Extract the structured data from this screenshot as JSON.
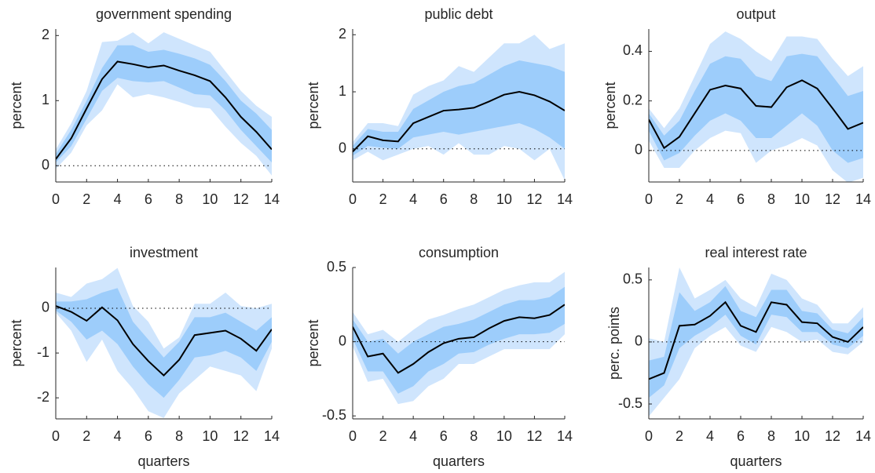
{
  "chart_data": [
    {
      "type": "line",
      "title": "government spending",
      "ylabel": "percent",
      "x": [
        0,
        1,
        2,
        3,
        4,
        5,
        6,
        7,
        8,
        9,
        10,
        11,
        12,
        13,
        14
      ],
      "xlim": [
        0,
        14
      ],
      "xticks": [
        0,
        2,
        4,
        6,
        8,
        10,
        12,
        14
      ],
      "ylim": [
        -0.25,
        2.1
      ],
      "yticks": [
        0,
        1,
        2
      ],
      "zero_line": true,
      "bands": [
        {
          "color": "#cfe5fd",
          "lower": [
            -0.05,
            0.2,
            0.62,
            0.85,
            1.25,
            1.05,
            1.1,
            1.05,
            0.98,
            0.9,
            0.88,
            0.6,
            0.35,
            0.15,
            -0.15
          ],
          "upper": [
            0.25,
            0.65,
            1.15,
            1.9,
            1.92,
            2.05,
            1.88,
            2.05,
            1.95,
            1.85,
            1.75,
            1.45,
            1.15,
            0.92,
            0.75
          ]
        },
        {
          "color": "#9dcdfb",
          "lower": [
            0.05,
            0.3,
            0.72,
            1.15,
            1.35,
            1.3,
            1.28,
            1.3,
            1.2,
            1.1,
            1.08,
            0.85,
            0.55,
            0.3,
            0.05
          ],
          "upper": [
            0.18,
            0.55,
            1.0,
            1.5,
            1.85,
            1.85,
            1.75,
            1.78,
            1.72,
            1.65,
            1.55,
            1.3,
            1.0,
            0.8,
            0.55
          ]
        }
      ],
      "series": [
        {
          "color": "#000000",
          "values": [
            0.1,
            0.42,
            0.88,
            1.33,
            1.6,
            1.56,
            1.51,
            1.54,
            1.46,
            1.39,
            1.3,
            1.05,
            0.75,
            0.52,
            0.25
          ]
        }
      ]
    },
    {
      "type": "line",
      "title": "public debt",
      "ylabel": "percent",
      "x": [
        0,
        1,
        2,
        3,
        4,
        5,
        6,
        7,
        8,
        9,
        10,
        11,
        12,
        13,
        14
      ],
      "xlim": [
        0,
        14
      ],
      "xticks": [
        0,
        2,
        4,
        6,
        8,
        10,
        12,
        14
      ],
      "ylim": [
        -0.58,
        2.1
      ],
      "yticks": [
        0,
        1,
        2
      ],
      "zero_line": true,
      "bands": [
        {
          "color": "#cfe5fd",
          "lower": [
            -0.2,
            -0.05,
            -0.2,
            -0.1,
            0.0,
            0.05,
            -0.1,
            0.1,
            -0.1,
            -0.1,
            0.05,
            0.0,
            -0.2,
            0.0,
            -0.55
          ],
          "upper": [
            0.12,
            0.45,
            0.45,
            0.4,
            0.95,
            1.1,
            1.2,
            1.45,
            1.35,
            1.6,
            1.85,
            1.85,
            2.0,
            1.75,
            1.85
          ]
        },
        {
          "color": "#9dcdfb",
          "lower": [
            -0.12,
            0.05,
            0.02,
            0.0,
            0.2,
            0.25,
            0.3,
            0.25,
            0.3,
            0.35,
            0.4,
            0.45,
            0.35,
            0.2,
            0.0
          ],
          "upper": [
            0.05,
            0.35,
            0.3,
            0.3,
            0.7,
            0.85,
            1.0,
            1.1,
            1.15,
            1.3,
            1.45,
            1.55,
            1.5,
            1.45,
            1.35
          ]
        }
      ],
      "series": [
        {
          "color": "#000000",
          "values": [
            -0.05,
            0.22,
            0.15,
            0.13,
            0.45,
            0.56,
            0.67,
            0.69,
            0.72,
            0.83,
            0.95,
            1.0,
            0.94,
            0.83,
            0.67
          ]
        }
      ]
    },
    {
      "type": "line",
      "title": "output",
      "ylabel": "percent",
      "x": [
        0,
        1,
        2,
        3,
        4,
        5,
        6,
        7,
        8,
        9,
        10,
        11,
        12,
        13,
        14
      ],
      "xlim": [
        0,
        14
      ],
      "xticks": [
        0,
        2,
        4,
        6,
        8,
        10,
        12,
        14
      ],
      "ylim": [
        -0.127,
        0.49
      ],
      "yticks": [
        0,
        0.2,
        0.4
      ],
      "zero_line": true,
      "bands": [
        {
          "color": "#cfe5fd",
          "lower": [
            0.04,
            -0.07,
            -0.07,
            0.0,
            0.05,
            0.08,
            0.07,
            -0.05,
            0.0,
            0.02,
            0.05,
            0.02,
            -0.08,
            -0.13,
            -0.11
          ],
          "upper": [
            0.17,
            0.09,
            0.17,
            0.3,
            0.43,
            0.48,
            0.45,
            0.4,
            0.36,
            0.46,
            0.46,
            0.45,
            0.37,
            0.3,
            0.34
          ]
        },
        {
          "color": "#9dcdfb",
          "lower": [
            0.08,
            -0.04,
            -0.01,
            0.06,
            0.12,
            0.15,
            0.12,
            0.05,
            0.05,
            0.1,
            0.15,
            0.1,
            0.0,
            -0.05,
            -0.03
          ],
          "upper": [
            0.15,
            0.06,
            0.12,
            0.24,
            0.35,
            0.38,
            0.37,
            0.3,
            0.28,
            0.38,
            0.39,
            0.38,
            0.3,
            0.22,
            0.24
          ]
        }
      ],
      "series": [
        {
          "color": "#000000",
          "values": [
            0.125,
            0.01,
            0.055,
            0.15,
            0.245,
            0.262,
            0.25,
            0.18,
            0.175,
            0.255,
            0.283,
            0.25,
            0.17,
            0.087,
            0.112
          ]
        }
      ]
    },
    {
      "type": "line",
      "title": "investment",
      "ylabel": "percent",
      "xlabel": "quarters",
      "x": [
        0,
        1,
        2,
        3,
        4,
        5,
        6,
        7,
        8,
        9,
        10,
        11,
        12,
        13,
        14
      ],
      "xlim": [
        0,
        14
      ],
      "xticks": [
        0,
        2,
        4,
        6,
        8,
        10,
        12,
        14
      ],
      "ylim": [
        -2.47,
        0.91
      ],
      "yticks": [
        -2,
        -1,
        0
      ],
      "zero_line": true,
      "bands": [
        {
          "color": "#cfe5fd",
          "lower": [
            -0.1,
            -0.5,
            -1.2,
            -0.7,
            -1.4,
            -1.8,
            -2.3,
            -2.45,
            -1.9,
            -1.6,
            -1.3,
            -1.4,
            -1.5,
            -1.85,
            -0.9
          ],
          "upper": [
            0.35,
            0.25,
            0.55,
            0.65,
            0.9,
            0.05,
            -0.3,
            -0.9,
            -0.65,
            0.1,
            0.1,
            0.35,
            0.05,
            0.0,
            0.1
          ]
        },
        {
          "color": "#9dcdfb",
          "lower": [
            -0.05,
            -0.3,
            -0.7,
            -0.5,
            -0.8,
            -1.3,
            -1.7,
            -2.0,
            -1.6,
            -1.1,
            -1.05,
            -0.95,
            -1.1,
            -1.4,
            -0.75
          ],
          "upper": [
            0.15,
            0.15,
            0.2,
            0.35,
            0.45,
            -0.3,
            -0.7,
            -1.1,
            -0.75,
            -0.2,
            -0.2,
            -0.1,
            -0.3,
            -0.5,
            -0.2
          ]
        }
      ],
      "series": [
        {
          "color": "#000000",
          "values": [
            0.05,
            -0.08,
            -0.28,
            0.02,
            -0.27,
            -0.8,
            -1.18,
            -1.5,
            -1.15,
            -0.6,
            -0.55,
            -0.5,
            -0.68,
            -0.95,
            -0.47
          ]
        }
      ]
    },
    {
      "type": "line",
      "title": "consumption",
      "ylabel": "percent",
      "xlabel": "quarters",
      "x": [
        0,
        1,
        2,
        3,
        4,
        5,
        6,
        7,
        8,
        9,
        10,
        11,
        12,
        13,
        14
      ],
      "xlim": [
        0,
        14
      ],
      "xticks": [
        0,
        2,
        4,
        6,
        8,
        10,
        12,
        14
      ],
      "ylim": [
        -0.52,
        0.5
      ],
      "yticks": [
        -0.5,
        0,
        0.5
      ],
      "zero_line": true,
      "bands": [
        {
          "color": "#cfe5fd",
          "lower": [
            -0.03,
            -0.27,
            -0.25,
            -0.42,
            -0.4,
            -0.3,
            -0.25,
            -0.15,
            -0.15,
            -0.1,
            -0.05,
            -0.05,
            -0.05,
            -0.05,
            0.05
          ],
          "upper": [
            0.2,
            0.05,
            0.08,
            0.0,
            0.08,
            0.15,
            0.18,
            0.22,
            0.25,
            0.3,
            0.35,
            0.38,
            0.4,
            0.4,
            0.47
          ]
        },
        {
          "color": "#9dcdfb",
          "lower": [
            0.02,
            -0.2,
            -0.2,
            -0.35,
            -0.3,
            -0.2,
            -0.15,
            -0.08,
            -0.07,
            -0.02,
            0.02,
            0.05,
            0.05,
            0.06,
            0.12
          ],
          "upper": [
            0.15,
            0.0,
            0.02,
            -0.08,
            0.0,
            0.05,
            0.1,
            0.12,
            0.15,
            0.2,
            0.25,
            0.28,
            0.28,
            0.3,
            0.37
          ]
        }
      ],
      "series": [
        {
          "color": "#000000",
          "values": [
            0.1,
            -0.1,
            -0.08,
            -0.21,
            -0.15,
            -0.07,
            -0.01,
            0.02,
            0.03,
            0.09,
            0.14,
            0.165,
            0.158,
            0.18,
            0.25
          ]
        }
      ]
    },
    {
      "type": "line",
      "title": "real interest rate",
      "ylabel": "perc. points",
      "xlabel": "quarters",
      "x": [
        0,
        1,
        2,
        3,
        4,
        5,
        6,
        7,
        8,
        9,
        10,
        11,
        12,
        13,
        14
      ],
      "xlim": [
        0,
        14
      ],
      "xticks": [
        0,
        2,
        4,
        6,
        8,
        10,
        12,
        14
      ],
      "ylim": [
        -0.62,
        0.6
      ],
      "yticks": [
        -0.5,
        0,
        0.5
      ],
      "zero_line": true,
      "bands": [
        {
          "color": "#cfe5fd",
          "lower": [
            -0.6,
            -0.45,
            -0.3,
            -0.05,
            0.05,
            0.12,
            -0.03,
            -0.08,
            0.12,
            0.08,
            0.0,
            0.02,
            -0.08,
            -0.1,
            0.0
          ],
          "upper": [
            0.03,
            0.0,
            0.6,
            0.35,
            0.42,
            0.5,
            0.35,
            0.28,
            0.55,
            0.5,
            0.35,
            0.3,
            0.15,
            0.15,
            0.28
          ]
        },
        {
          "color": "#9dcdfb",
          "lower": [
            -0.45,
            -0.35,
            -0.05,
            0.05,
            0.12,
            0.22,
            0.05,
            -0.02,
            0.22,
            0.2,
            0.08,
            0.08,
            -0.02,
            -0.05,
            0.05
          ],
          "upper": [
            -0.15,
            -0.12,
            0.4,
            0.25,
            0.32,
            0.45,
            0.25,
            0.2,
            0.42,
            0.42,
            0.25,
            0.23,
            0.1,
            0.07,
            0.2
          ]
        }
      ],
      "series": [
        {
          "color": "#000000",
          "values": [
            -0.3,
            -0.25,
            0.13,
            0.14,
            0.21,
            0.32,
            0.13,
            0.08,
            0.32,
            0.3,
            0.16,
            0.15,
            0.04,
            0.0,
            0.12
          ]
        }
      ]
    }
  ]
}
